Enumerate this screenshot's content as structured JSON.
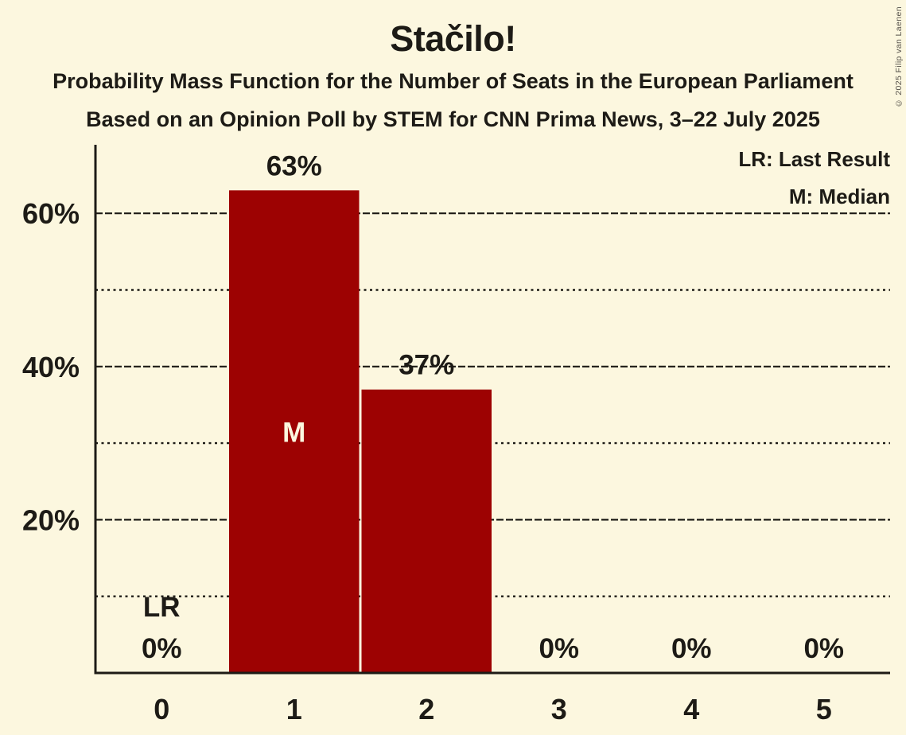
{
  "header": {
    "title": "Stačilo!",
    "subtitle1": "Probability Mass Function for the Number of Seats in the European Parliament",
    "subtitle2": "Based on an Opinion Poll by STEM for CNN Prima News, 3–22 July 2025"
  },
  "legend": {
    "last_result": "LR: Last Result",
    "median": "M: Median",
    "position": "top-right"
  },
  "copyright": "© 2025 Filip van Laenen",
  "colors": {
    "background": "#FCF7DF",
    "bar": "#9D0202",
    "text": "#1D1B16",
    "median_label": "#FCF7DF",
    "copyright_text": "#55514A"
  },
  "chart_data": {
    "type": "bar",
    "title": "Stačilo!",
    "categories": [
      "0",
      "1",
      "2",
      "3",
      "4",
      "5"
    ],
    "values": [
      0,
      63,
      37,
      0,
      0,
      0
    ],
    "value_labels": [
      "0%",
      "63%",
      "37%",
      "0%",
      "0%",
      "0%"
    ],
    "xlabel": "",
    "ylabel": "",
    "ylim": [
      0,
      69
    ],
    "major_gridlines": [
      20,
      40,
      60
    ],
    "major_gridline_labels": [
      "20%",
      "40%",
      "60%"
    ],
    "minor_gridlines": [
      10,
      30,
      50
    ],
    "median": {
      "category": "1",
      "label": "M"
    },
    "last_result": {
      "category": "0",
      "label": "LR"
    },
    "legend_entries": [
      "LR: Last Result",
      "M: Median"
    ],
    "legend_position": "top-right",
    "grid": "major dashed, minor dotted",
    "bar_color": "#9D0202"
  }
}
